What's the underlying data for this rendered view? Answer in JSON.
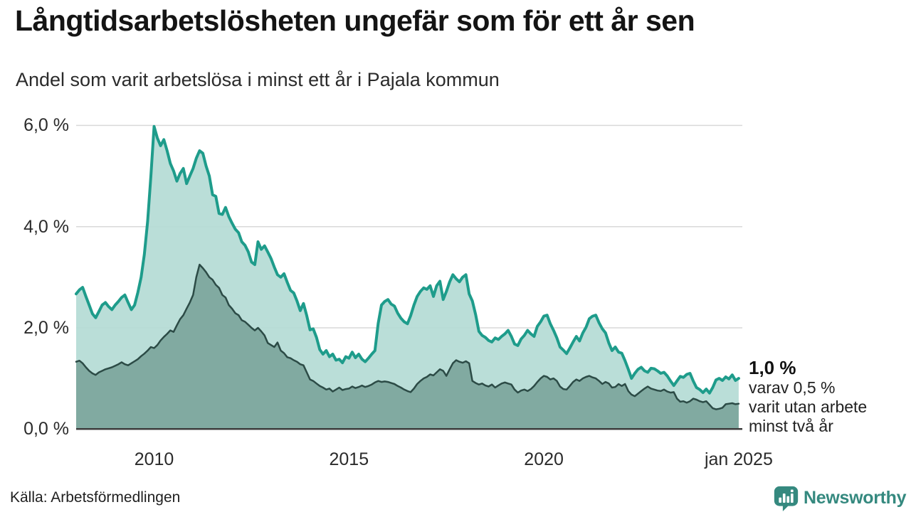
{
  "header": {
    "title": "Långtidsarbetslösheten ungefär som för ett år sen",
    "subtitle": "Andel som varit arbetslösa i minst ett år i Pajala kommun"
  },
  "chart": {
    "annotation": {
      "value": "1,0 %",
      "lines": [
        "varav 0,5 %",
        "varit utan arbete",
        "minst två år"
      ]
    }
  },
  "footer": {
    "source": "Källa: Arbetsförmedlingen",
    "brand": "Newsworthy"
  },
  "icons": {
    "brand_icon": "speech-bubble-with-bar-chart-and-exclamation"
  },
  "colors": {
    "line_1yr": "#1e9c8b",
    "fill_1yr": "#b5dbd5",
    "line_2yr": "#2c4b46",
    "fill_2yr": "#7da69e",
    "grid": "#d9d9d9",
    "axis": "#3d3d3d",
    "brand": "#35897f",
    "text": "#141414"
  },
  "chart_data": {
    "type": "area",
    "title": "Långtidsarbetslösheten ungefär som för ett år sen",
    "subtitle": "Andel som varit arbetslösa i minst ett år i Pajala kommun",
    "unit": "%",
    "frequency": "monthly",
    "x_start": "2008-01",
    "x_end": "2025-01",
    "x_axis": {
      "ticks": [
        {
          "t": 2010.0,
          "label": "2010"
        },
        {
          "t": 2015.0,
          "label": "2015"
        },
        {
          "t": 2020.0,
          "label": "2020"
        },
        {
          "t": 2025.0,
          "label": "jan 2025"
        }
      ]
    },
    "y_axis": {
      "min": 0,
      "max": 6.3,
      "ticks": [
        {
          "v": 0,
          "label": "0,0 %"
        },
        {
          "v": 2,
          "label": "2,0 %"
        },
        {
          "v": 4,
          "label": "4,0 %"
        },
        {
          "v": 6,
          "label": "6,0 %"
        }
      ]
    },
    "series": [
      {
        "name": "Andel arbetslösa i minst ett år",
        "end_label": "1,0 %",
        "color": "#1e9c8b",
        "fill": "#b5dbd5",
        "values": [
          2.67,
          2.75,
          2.8,
          2.62,
          2.45,
          2.28,
          2.2,
          2.32,
          2.45,
          2.5,
          2.42,
          2.36,
          2.45,
          2.52,
          2.6,
          2.65,
          2.5,
          2.36,
          2.45,
          2.7,
          3.0,
          3.45,
          4.1,
          5.0,
          5.98,
          5.75,
          5.6,
          5.72,
          5.5,
          5.25,
          5.1,
          4.9,
          5.05,
          5.15,
          4.85,
          5.0,
          5.15,
          5.35,
          5.5,
          5.45,
          5.2,
          5.0,
          4.63,
          4.6,
          4.26,
          4.24,
          4.38,
          4.2,
          4.07,
          3.95,
          3.88,
          3.7,
          3.63,
          3.5,
          3.3,
          3.25,
          3.7,
          3.55,
          3.62,
          3.5,
          3.37,
          3.2,
          3.05,
          3.0,
          3.07,
          2.9,
          2.74,
          2.69,
          2.53,
          2.34,
          2.48,
          2.24,
          1.96,
          1.98,
          1.81,
          1.57,
          1.48,
          1.55,
          1.43,
          1.48,
          1.36,
          1.38,
          1.31,
          1.43,
          1.4,
          1.52,
          1.41,
          1.48,
          1.38,
          1.33,
          1.4,
          1.48,
          1.55,
          2.09,
          2.45,
          2.52,
          2.56,
          2.47,
          2.43,
          2.29,
          2.19,
          2.12,
          2.08,
          2.24,
          2.45,
          2.62,
          2.72,
          2.79,
          2.76,
          2.83,
          2.62,
          2.83,
          2.92,
          2.56,
          2.72,
          2.91,
          3.05,
          2.97,
          2.91,
          3.0,
          3.05,
          2.67,
          2.53,
          2.26,
          1.93,
          1.85,
          1.81,
          1.75,
          1.72,
          1.8,
          1.77,
          1.83,
          1.88,
          1.95,
          1.83,
          1.68,
          1.65,
          1.78,
          1.85,
          1.95,
          1.88,
          1.83,
          2.03,
          2.12,
          2.23,
          2.25,
          2.08,
          1.95,
          1.8,
          1.62,
          1.56,
          1.49,
          1.6,
          1.72,
          1.83,
          1.74,
          1.9,
          2.01,
          2.18,
          2.23,
          2.25,
          2.1,
          1.98,
          1.9,
          1.7,
          1.55,
          1.62,
          1.52,
          1.5,
          1.35,
          1.18,
          1.0,
          1.1,
          1.18,
          1.22,
          1.15,
          1.12,
          1.2,
          1.19,
          1.15,
          1.1,
          1.12,
          1.05,
          0.95,
          0.86,
          0.95,
          1.04,
          1.02,
          1.08,
          1.1,
          0.95,
          0.82,
          0.78,
          0.72,
          0.79,
          0.71,
          0.82,
          0.97,
          1.0,
          0.96,
          1.03,
          0.99,
          1.07,
          0.96,
          1.0
        ]
      },
      {
        "name": "varav utan arbete minst två år",
        "end_label": "0,5 %",
        "color": "#2c4b46",
        "fill": "#7da69e",
        "values": [
          1.33,
          1.35,
          1.3,
          1.22,
          1.15,
          1.1,
          1.07,
          1.12,
          1.15,
          1.18,
          1.2,
          1.22,
          1.25,
          1.28,
          1.32,
          1.28,
          1.26,
          1.3,
          1.34,
          1.38,
          1.44,
          1.49,
          1.55,
          1.62,
          1.6,
          1.66,
          1.75,
          1.82,
          1.88,
          1.95,
          1.92,
          2.05,
          2.17,
          2.25,
          2.38,
          2.5,
          2.65,
          3.0,
          3.25,
          3.18,
          3.1,
          3.0,
          2.95,
          2.85,
          2.79,
          2.65,
          2.6,
          2.45,
          2.38,
          2.29,
          2.25,
          2.15,
          2.12,
          2.06,
          2.0,
          1.95,
          2.0,
          1.93,
          1.85,
          1.7,
          1.66,
          1.62,
          1.71,
          1.55,
          1.5,
          1.42,
          1.4,
          1.36,
          1.33,
          1.28,
          1.26,
          1.12,
          0.98,
          0.95,
          0.9,
          0.85,
          0.82,
          0.78,
          0.8,
          0.74,
          0.78,
          0.82,
          0.77,
          0.79,
          0.8,
          0.84,
          0.81,
          0.83,
          0.86,
          0.83,
          0.85,
          0.88,
          0.92,
          0.95,
          0.93,
          0.94,
          0.93,
          0.91,
          0.89,
          0.85,
          0.82,
          0.78,
          0.75,
          0.73,
          0.8,
          0.89,
          0.95,
          1.0,
          1.03,
          1.08,
          1.06,
          1.12,
          1.18,
          1.15,
          1.05,
          1.18,
          1.3,
          1.36,
          1.33,
          1.31,
          1.34,
          1.3,
          0.95,
          0.91,
          0.88,
          0.9,
          0.86,
          0.84,
          0.88,
          0.82,
          0.86,
          0.9,
          0.92,
          0.9,
          0.88,
          0.78,
          0.72,
          0.76,
          0.78,
          0.75,
          0.79,
          0.85,
          0.93,
          1.0,
          1.05,
          1.03,
          0.98,
          1.0,
          0.95,
          0.84,
          0.79,
          0.78,
          0.85,
          0.93,
          0.98,
          0.95,
          1.0,
          1.03,
          1.05,
          1.02,
          1.0,
          0.95,
          0.89,
          0.93,
          0.9,
          0.82,
          0.83,
          0.89,
          0.85,
          0.89,
          0.75,
          0.68,
          0.65,
          0.7,
          0.75,
          0.8,
          0.84,
          0.8,
          0.78,
          0.76,
          0.75,
          0.78,
          0.74,
          0.72,
          0.73,
          0.6,
          0.54,
          0.55,
          0.52,
          0.55,
          0.6,
          0.58,
          0.55,
          0.53,
          0.55,
          0.48,
          0.41,
          0.39,
          0.4,
          0.42,
          0.49,
          0.5,
          0.51,
          0.49,
          0.5
        ]
      }
    ]
  }
}
